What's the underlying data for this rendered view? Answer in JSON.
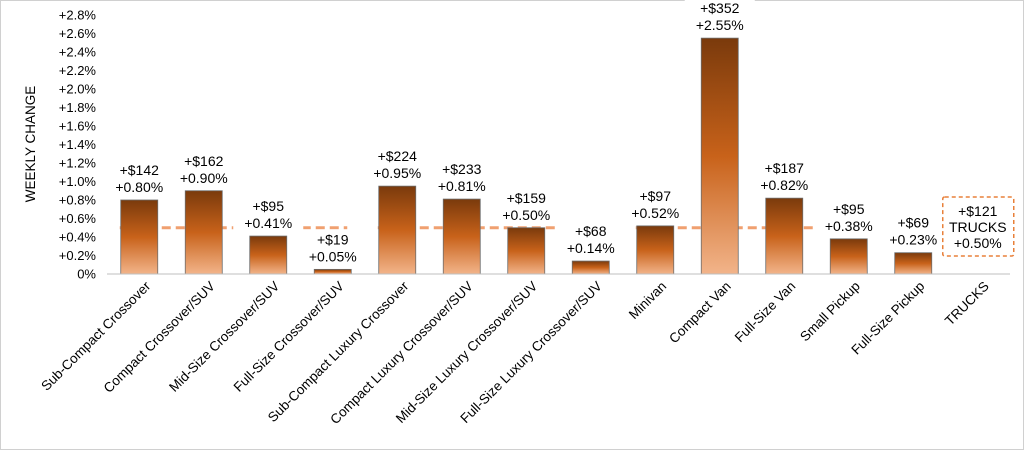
{
  "chart_data": {
    "type": "bar",
    "ylabel": "WEEKLY CHANGE",
    "ylim": [
      0,
      2.8
    ],
    "ytick_labels": [
      "0%",
      "+0.2%",
      "+0.4%",
      "+0.6%",
      "+0.8%",
      "+1.0%",
      "+1.2%",
      "+1.4%",
      "+1.6%",
      "+1.8%",
      "+2.0%",
      "+2.2%",
      "+2.4%",
      "+2.6%",
      "+2.8%"
    ],
    "grid": false,
    "legend": "none",
    "categories": [
      "Sub-Compact Crossover",
      "Compact Crossover/SUV",
      "Mid-Size Crossover/SUV",
      "Full-Size Crossover/SUV",
      "Sub-Compact Luxury Crossover",
      "Compact Luxury Crossover/SUV",
      "Mid-Size Luxury Crossover/SUV",
      "Full-Size Luxury Crossover/SUV",
      "Minivan",
      "Compact Van",
      "Full-Size Van",
      "Small Pickup",
      "Full-Size Pickup",
      "TRUCKS"
    ],
    "values": [
      0.8,
      0.9,
      0.41,
      0.05,
      0.95,
      0.81,
      0.5,
      0.14,
      0.52,
      2.55,
      0.82,
      0.38,
      0.23,
      null
    ],
    "dollar_labels": [
      "+$142",
      "+$162",
      "+$95",
      "+$19",
      "+$224",
      "+$233",
      "+$159",
      "+$68",
      "+$97",
      "+$352",
      "+$187",
      "+$95",
      "+$69"
    ],
    "percent_labels": [
      "+0.80%",
      "+0.90%",
      "+0.41%",
      "+0.05%",
      "+0.95%",
      "+0.81%",
      "+0.50%",
      "+0.14%",
      "+0.52%",
      "+2.55%",
      "+0.82%",
      "+0.38%",
      "+0.23%"
    ],
    "segment_averages": [
      {
        "from": 0,
        "to": 3,
        "value": 0.5
      },
      {
        "from": 4,
        "to": 7,
        "value": 0.5
      },
      {
        "from": 8,
        "to": 13,
        "value": 0.5
      }
    ],
    "summary_box": {
      "lines": [
        "+$121",
        "TRUCKS",
        "+0.50%"
      ]
    },
    "colors": {
      "bar_top": "#7a3a0c",
      "bar_mid": "#c8621a",
      "bar_bottom": "#f2b48a",
      "average_line": "#f0a070",
      "summary_border": "#e8803a"
    }
  }
}
